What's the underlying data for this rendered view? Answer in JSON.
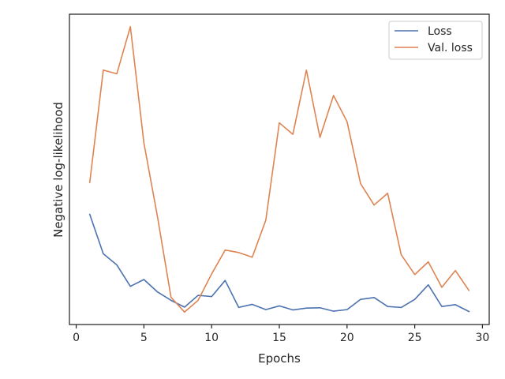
{
  "chart_data": {
    "type": "line",
    "title": "",
    "xlabel": "Epochs",
    "ylabel": "Negative log-likelihood",
    "xlim": [
      -0.5,
      30.5
    ],
    "ylim": [
      0.0,
      1.0
    ],
    "x_ticks": [
      0,
      5,
      10,
      15,
      20,
      25,
      30
    ],
    "y_ticks_shown": false,
    "grid": false,
    "legend_position": "top-right",
    "x": [
      1,
      2,
      3,
      4,
      5,
      6,
      7,
      8,
      9,
      10,
      11,
      12,
      13,
      14,
      15,
      16,
      17,
      18,
      19,
      20,
      21,
      22,
      23,
      24,
      25,
      26,
      27,
      28,
      29
    ],
    "series": [
      {
        "name": "Loss",
        "color": "#4c72b0",
        "values": [
          0.355,
          0.228,
          0.192,
          0.123,
          0.145,
          0.105,
          0.078,
          0.056,
          0.094,
          0.09,
          0.142,
          0.055,
          0.065,
          0.048,
          0.06,
          0.047,
          0.053,
          0.054,
          0.043,
          0.048,
          0.081,
          0.087,
          0.058,
          0.055,
          0.081,
          0.128,
          0.058,
          0.064,
          0.042
        ]
      },
      {
        "name": "Val. loss",
        "color": "#dd8452",
        "values": [
          0.458,
          0.82,
          0.808,
          0.96,
          0.585,
          0.348,
          0.088,
          0.04,
          0.078,
          0.163,
          0.24,
          0.232,
          0.217,
          0.336,
          0.65,
          0.613,
          0.82,
          0.603,
          0.738,
          0.654,
          0.454,
          0.385,
          0.423,
          0.225,
          0.161,
          0.202,
          0.12,
          0.174,
          0.11
        ]
      }
    ]
  }
}
